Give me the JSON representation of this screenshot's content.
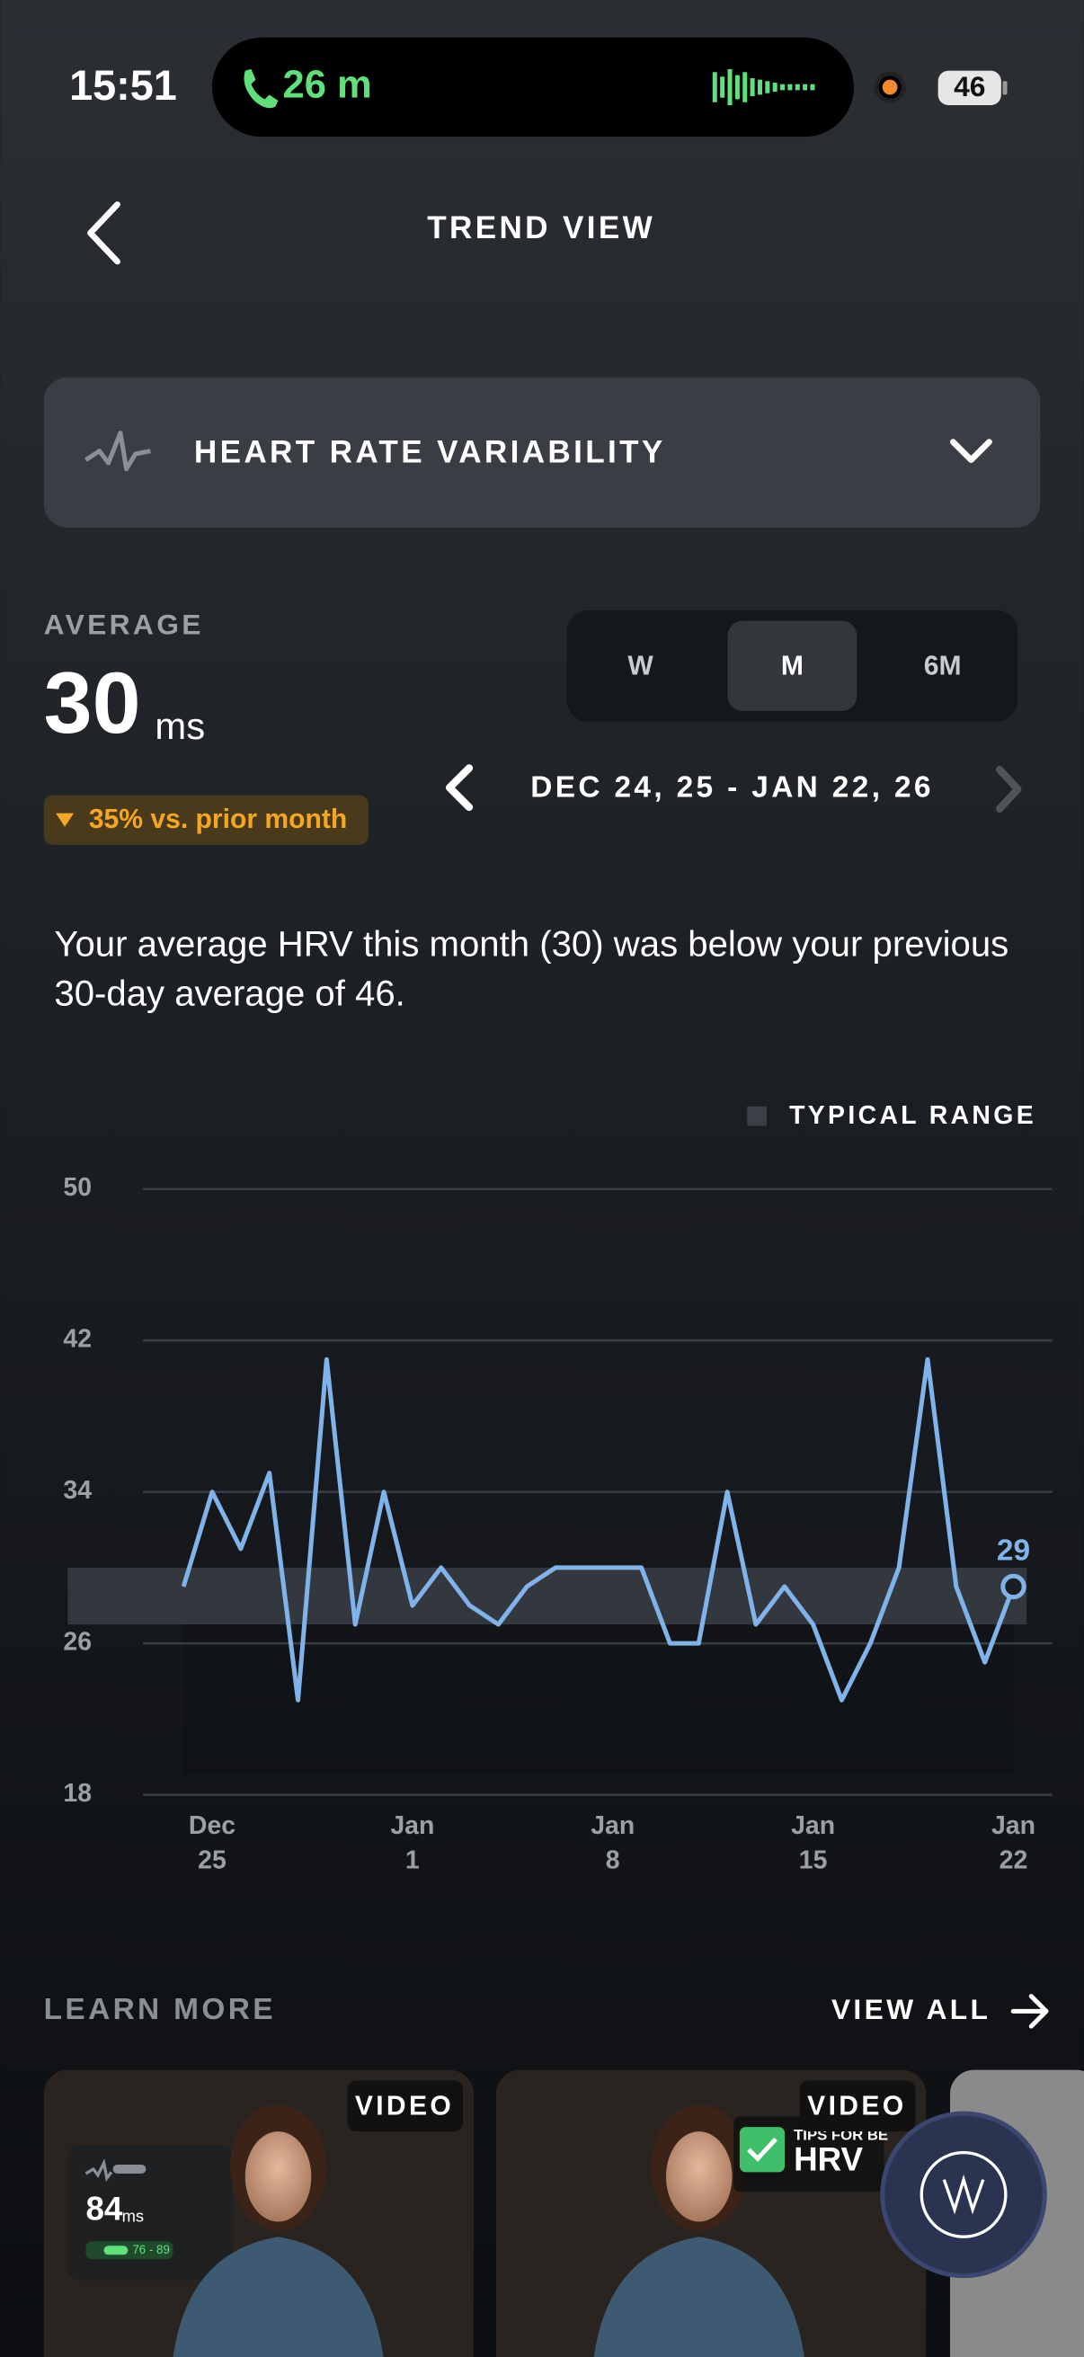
{
  "status_bar": {
    "time": "15:51",
    "call_duration": "26 m",
    "battery": "46"
  },
  "header": {
    "title": "TREND VIEW"
  },
  "metric_selector": {
    "label": "HEART RATE VARIABILITY"
  },
  "summary": {
    "average_label": "AVERAGE",
    "average_value": 30,
    "average_unit": "ms",
    "change": "35% vs. prior month",
    "periods": [
      "W",
      "M",
      "6M"
    ],
    "selected_period": "M",
    "date_range": "DEC 24, 25 - JAN 22, 26",
    "text": "Your average HRV this month (30) was below your previous 30-day average of 46."
  },
  "chart_data": {
    "type": "line",
    "legend_label": "TYPICAL RANGE",
    "typical_range": [
      27,
      30
    ],
    "typical_range_color": "#3b4047",
    "color": "#80b3ea",
    "categories": [
      null,
      "Dec 25",
      null,
      null,
      null,
      null,
      null,
      null,
      "Jan 1",
      null,
      null,
      null,
      null,
      null,
      null,
      "Jan 8",
      null,
      null,
      null,
      null,
      null,
      null,
      "Jan 15",
      null,
      null,
      null,
      null,
      null,
      null,
      "Jan 22"
    ],
    "values": [
      29,
      34,
      31,
      35,
      23,
      41,
      27,
      34,
      28,
      30,
      28,
      27,
      29,
      30,
      30,
      30,
      30,
      26,
      26,
      34,
      27,
      29,
      27,
      23,
      26,
      30,
      41,
      29,
      25,
      29
    ],
    "value_labels": [
      null,
      null,
      null,
      null,
      null,
      null,
      null,
      null,
      null,
      null,
      null,
      null,
      null,
      null,
      null,
      null,
      null,
      null,
      null,
      null,
      null,
      null,
      null,
      null,
      null,
      null,
      null,
      null,
      null,
      "29"
    ],
    "ylim": [
      18,
      50
    ],
    "yticks": [
      18,
      26,
      34,
      42,
      50
    ],
    "grid": true
  },
  "learn_more": {
    "title": "LEARN MORE",
    "view_all": "VIEW ALL",
    "cards": [
      {
        "badge": "VIDEO",
        "metric_value": "84",
        "metric_unit": "ms",
        "metric_range": "76 - 89"
      },
      {
        "badge": "VIDEO",
        "caption": "TIPS FOR BE",
        "headline": "HRV"
      }
    ]
  }
}
